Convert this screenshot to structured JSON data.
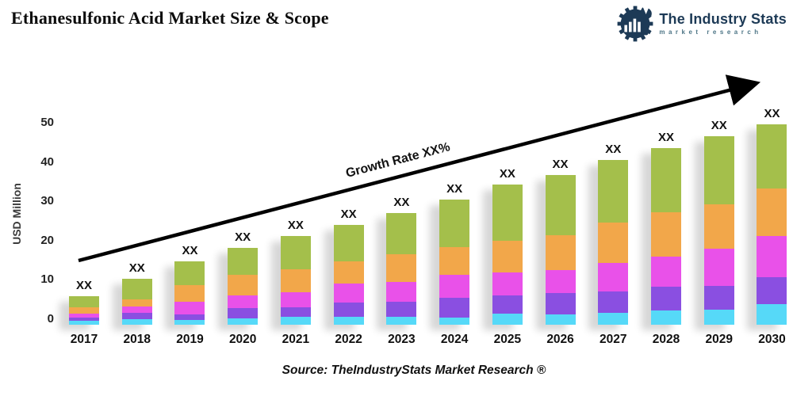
{
  "header": {
    "title": "Ethanesulfonic Acid Market Size & Scope",
    "logo": {
      "name": "The Industry Stats",
      "tagline": "market research",
      "brand_color": "#1d3a56",
      "tagline_color": "#4d7586"
    }
  },
  "footer": {
    "source": "Source: TheIndustryStats Market Research ®"
  },
  "chart_data": {
    "type": "bar",
    "stacked": true,
    "title": "Ethanesulfonic Acid Market Size & Scope",
    "xlabel": "",
    "ylabel": "USD Million",
    "ylim": [
      0,
      50
    ],
    "yticks": [
      0,
      10,
      20,
      30,
      40,
      50
    ],
    "grid": false,
    "legend": "none",
    "bar_value_label": "XX",
    "growth_label": "Growth Rate XX%",
    "baseline": -1.4,
    "categories": [
      "2017",
      "2018",
      "2019",
      "2020",
      "2021",
      "2022",
      "2023",
      "2024",
      "2025",
      "2026",
      "2027",
      "2028",
      "2029",
      "2030"
    ],
    "series": [
      {
        "name": "segment-cyan",
        "color": "#56d9f8",
        "values": [
          0.9,
          1.4,
          1.1,
          1.6,
          2.0,
          2.0,
          2.0,
          1.8,
          2.9,
          2.6,
          3.0,
          3.7,
          3.8,
          5.2
        ]
      },
      {
        "name": "segment-purple",
        "color": "#8a4fe1",
        "values": [
          0.8,
          1.6,
          1.6,
          2.6,
          2.4,
          3.7,
          3.8,
          5.1,
          4.5,
          5.5,
          5.4,
          5.9,
          6.0,
          6.9
        ]
      },
      {
        "name": "segment-magenta",
        "color": "#e951e9",
        "values": [
          1.2,
          1.6,
          3.1,
          3.2,
          3.9,
          4.8,
          5.0,
          5.8,
          5.8,
          5.8,
          7.4,
          7.7,
          9.5,
          10.5
        ]
      },
      {
        "name": "segment-orange",
        "color": "#f2a74a",
        "values": [
          1.6,
          1.8,
          4.2,
          5.2,
          5.8,
          5.7,
          7.1,
          7.1,
          8.1,
          8.9,
          10.2,
          11.4,
          11.4,
          12.0
        ]
      },
      {
        "name": "segment-green",
        "color": "#a4bf4b",
        "values": [
          2.8,
          5.2,
          6.2,
          6.9,
          8.5,
          9.1,
          10.6,
          12.1,
          14.3,
          15.3,
          16.0,
          16.3,
          17.3,
          16.3
        ]
      }
    ],
    "approx_totals_at_zero_axis": [
      5.9,
      10.2,
      14.8,
      18.1,
      21.2,
      23.9,
      27.1,
      30.5,
      34.2,
      36.7,
      40.6,
      43.6,
      46.6,
      49.5
    ]
  }
}
